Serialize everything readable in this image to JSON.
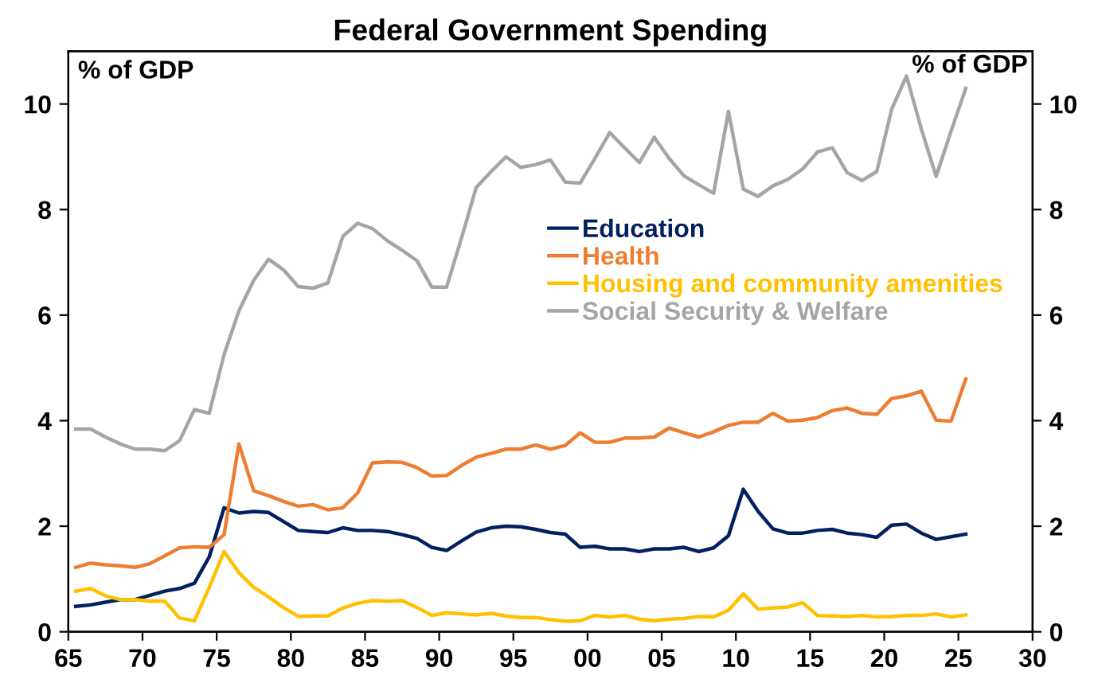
{
  "chart_data": {
    "type": "line",
    "title": "Federal Government Spending",
    "ylabel": "% of GDP",
    "y2label": "% of GDP",
    "x": [
      1965.5,
      1966.5,
      1967.5,
      1968.5,
      1969.5,
      1970.5,
      1971.5,
      1972.5,
      1973.5,
      1974.5,
      1975.5,
      1976.5,
      1977.5,
      1978.5,
      1979.5,
      1980.5,
      1981.5,
      1982.5,
      1983.5,
      1984.5,
      1985.5,
      1986.5,
      1987.5,
      1988.5,
      1989.5,
      1990.5,
      1991.5,
      1992.5,
      1993.5,
      1994.5,
      1995.5,
      1996.5,
      1997.5,
      1998.5,
      1999.5,
      2000.5,
      2001.5,
      2002.5,
      2003.5,
      2004.5,
      2005.5,
      2006.5,
      2007.5,
      2008.5,
      2009.5,
      2010.5,
      2011.5,
      2012.5,
      2013.5,
      2014.5,
      2015.5,
      2016.5,
      2017.5,
      2018.5,
      2019.5,
      2020.5,
      2021.5,
      2022.5,
      2023.5,
      2024.5,
      2025.5
    ],
    "series": [
      {
        "name": "Education",
        "color": "#002060",
        "values": [
          0.48,
          0.51,
          0.56,
          0.61,
          0.61,
          0.69,
          0.77,
          0.82,
          0.92,
          1.42,
          2.35,
          2.25,
          2.28,
          2.26,
          2.09,
          1.92,
          1.9,
          1.88,
          1.97,
          1.92,
          1.92,
          1.9,
          1.84,
          1.77,
          1.6,
          1.54,
          1.72,
          1.89,
          1.97,
          2.0,
          1.99,
          1.94,
          1.88,
          1.85,
          1.6,
          1.62,
          1.57,
          1.57,
          1.52,
          1.57,
          1.57,
          1.6,
          1.52,
          1.59,
          1.82,
          2.7,
          2.28,
          1.95,
          1.87,
          1.87,
          1.92,
          1.94,
          1.87,
          1.84,
          1.79,
          2.02,
          2.04,
          1.87,
          1.75,
          1.8,
          1.85
        ]
      },
      {
        "name": "Health",
        "color": "#ED7D31",
        "values": [
          1.22,
          1.3,
          1.27,
          1.25,
          1.22,
          1.29,
          1.44,
          1.59,
          1.61,
          1.6,
          1.84,
          3.56,
          2.67,
          2.58,
          2.47,
          2.38,
          2.41,
          2.31,
          2.35,
          2.63,
          3.2,
          3.22,
          3.21,
          3.11,
          2.95,
          2.96,
          3.15,
          3.31,
          3.38,
          3.46,
          3.46,
          3.54,
          3.46,
          3.53,
          3.77,
          3.59,
          3.59,
          3.67,
          3.67,
          3.69,
          3.86,
          3.77,
          3.69,
          3.79,
          3.91,
          3.97,
          3.97,
          4.14,
          3.99,
          4.01,
          4.06,
          4.19,
          4.24,
          4.14,
          4.12,
          4.42,
          4.47,
          4.56,
          4.01,
          3.99,
          4.79
        ]
      },
      {
        "name": "Housing and community amenities",
        "color": "#FFC000",
        "values": [
          0.77,
          0.82,
          0.68,
          0.61,
          0.61,
          0.58,
          0.58,
          0.26,
          0.21,
          0.84,
          1.52,
          1.12,
          0.84,
          0.66,
          0.46,
          0.29,
          0.3,
          0.3,
          0.45,
          0.54,
          0.59,
          0.58,
          0.59,
          0.46,
          0.31,
          0.36,
          0.34,
          0.32,
          0.35,
          0.3,
          0.27,
          0.27,
          0.23,
          0.2,
          0.21,
          0.31,
          0.28,
          0.31,
          0.24,
          0.21,
          0.24,
          0.25,
          0.29,
          0.28,
          0.41,
          0.72,
          0.43,
          0.45,
          0.47,
          0.55,
          0.31,
          0.3,
          0.29,
          0.31,
          0.28,
          0.29,
          0.31,
          0.31,
          0.34,
          0.28,
          0.32
        ]
      },
      {
        "name": "Social Security & Welfare",
        "color": "#A5A5A5",
        "values": [
          3.84,
          3.84,
          3.69,
          3.56,
          3.46,
          3.46,
          3.43,
          3.62,
          4.21,
          4.14,
          5.25,
          6.08,
          6.66,
          7.06,
          6.86,
          6.54,
          6.51,
          6.61,
          7.49,
          7.74,
          7.64,
          7.41,
          7.23,
          7.03,
          6.53,
          6.53,
          7.46,
          8.42,
          8.72,
          9.0,
          8.8,
          8.85,
          8.94,
          8.52,
          8.5,
          8.97,
          9.46,
          9.17,
          8.89,
          9.37,
          8.97,
          8.64,
          8.47,
          8.31,
          9.86,
          8.39,
          8.25,
          8.45,
          8.57,
          8.77,
          9.09,
          9.17,
          8.7,
          8.55,
          8.72,
          9.9,
          10.53,
          9.53,
          8.63,
          9.48,
          10.3
        ]
      }
    ],
    "xlim": [
      1965,
      2030
    ],
    "xticks": [
      {
        "value": 1965,
        "label": "65"
      },
      {
        "value": 1970,
        "label": "70"
      },
      {
        "value": 1975,
        "label": "75"
      },
      {
        "value": 1980,
        "label": "80"
      },
      {
        "value": 1985,
        "label": "85"
      },
      {
        "value": 1990,
        "label": "90"
      },
      {
        "value": 1995,
        "label": "95"
      },
      {
        "value": 2000,
        "label": "00"
      },
      {
        "value": 2005,
        "label": "05"
      },
      {
        "value": 2010,
        "label": "10"
      },
      {
        "value": 2015,
        "label": "15"
      },
      {
        "value": 2020,
        "label": "20"
      },
      {
        "value": 2025,
        "label": "25"
      },
      {
        "value": 2030,
        "label": "30"
      }
    ],
    "ylim": [
      0,
      11
    ],
    "yticks": [
      0,
      2,
      4,
      6,
      8,
      10
    ],
    "y2lim": [
      0,
      11
    ],
    "y2ticks": [
      0,
      2,
      4,
      6,
      8,
      10
    ],
    "legend": "center right",
    "grid": false
  }
}
